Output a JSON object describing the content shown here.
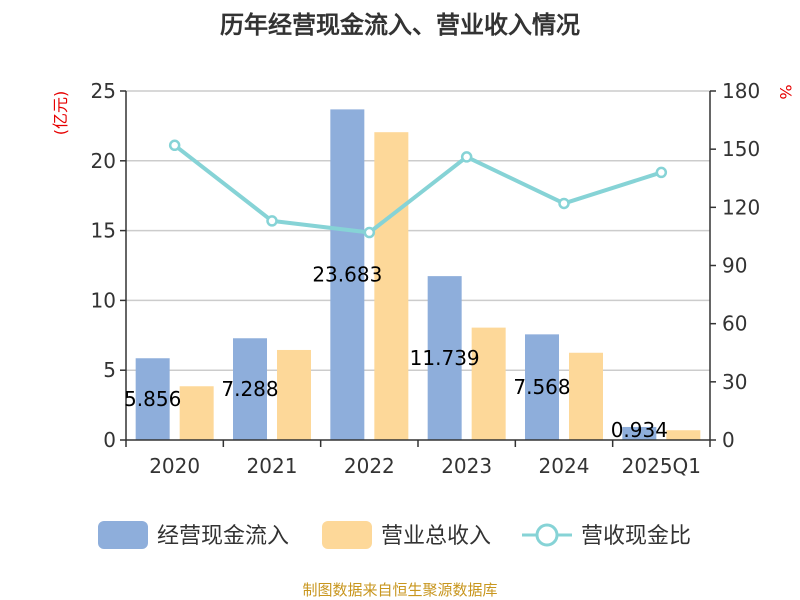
{
  "chart_data": {
    "type": "bar",
    "title": "历年经营现金流入、营业收入情况",
    "categories": [
      "2020",
      "2021",
      "2022",
      "2023",
      "2024",
      "2025Q1"
    ],
    "series": [
      {
        "name": "经营现金流入",
        "kind": "bar",
        "axis": "left",
        "color": "#8eaedb",
        "values": [
          5.856,
          7.288,
          23.683,
          11.739,
          7.568,
          0.934
        ],
        "data_labels": [
          "5.856",
          "7.288",
          "23.683",
          "11.739",
          "7.568",
          "0.934"
        ]
      },
      {
        "name": "营业总收入",
        "kind": "bar",
        "axis": "left",
        "color": "#fdd899",
        "values": [
          3.85,
          6.45,
          22.05,
          8.05,
          6.25,
          0.7
        ]
      },
      {
        "name": "营收现金比",
        "kind": "line",
        "axis": "right",
        "color": "#86d3d6",
        "values": [
          152,
          113,
          107,
          146,
          122,
          138
        ]
      }
    ],
    "y_left": {
      "unit": "(亿元)",
      "ylim": [
        0,
        25
      ],
      "ticks": [
        "0",
        "5",
        "10",
        "15",
        "20",
        "25"
      ]
    },
    "y_right": {
      "unit": "%",
      "ylim": [
        0,
        180
      ],
      "ticks": [
        "0",
        "30",
        "60",
        "90",
        "120",
        "150",
        "180"
      ]
    },
    "grid": true,
    "legend_position": "bottom"
  },
  "source_text": "制图数据来自恒生聚源数据库"
}
